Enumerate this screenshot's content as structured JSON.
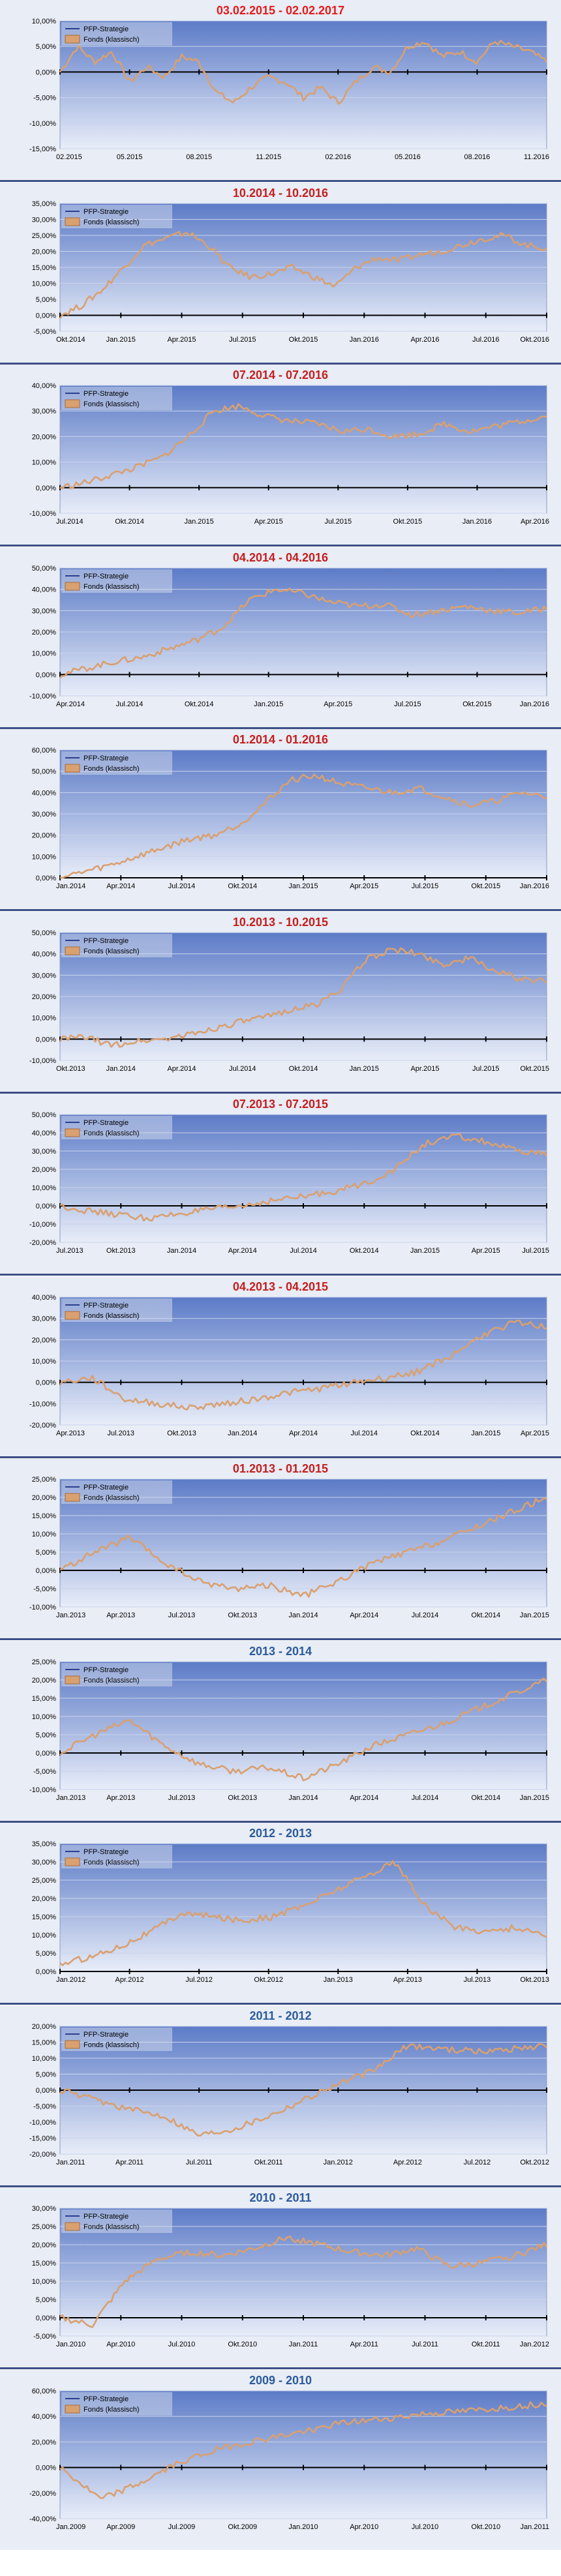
{
  "colors": {
    "title_first": "#e21b1b",
    "title_red": "#c41e1e",
    "title_blue": "#2a5b9c",
    "plot_top": "#5c7bc7",
    "plot_bottom": "#e8edf8",
    "panel_bg": "#e9edf5",
    "separator": "#3d4f86",
    "strategy_line": "#2c3f8f",
    "fund_line": "#d9a070"
  },
  "legend": {
    "strategy": "PFP-Strategie",
    "fund": "Fonds (klassisch)"
  },
  "chart_data": [
    {
      "type": "line",
      "title": "03.02.2015 - 02.02.2017",
      "title_color": "red_bright",
      "ylim": [
        -15,
        10
      ],
      "yticks": [
        "-15,00%",
        "-10,00%",
        "-5,00%",
        "0,00%",
        "5,00%",
        "10,00%"
      ],
      "xticks": [
        "02.2015",
        "05.2015",
        "08.2015",
        "11.2015",
        "02.2016",
        "05.2016",
        "08.2016",
        "11.2016"
      ],
      "points": [
        0,
        5,
        2,
        4,
        -2,
        1,
        -1,
        3,
        2,
        -4,
        -6,
        -3,
        -1,
        -2,
        -5,
        -3,
        -6,
        -2,
        1,
        0,
        5,
        6,
        3,
        4,
        2,
        6,
        5,
        4,
        2
      ],
      "series": [
        {
          "name": "PFP-Strategie"
        },
        {
          "name": "Fonds (klassisch)"
        }
      ]
    },
    {
      "type": "line",
      "title": "10.2014 - 10.2016",
      "title_color": "red",
      "ylim": [
        -5,
        35
      ],
      "yticks": [
        "-5,00%",
        "0,00%",
        "5,00%",
        "10,00%",
        "15,00%",
        "20,00%",
        "25,00%",
        "30,00%",
        "35,00%"
      ],
      "xticks": [
        "Okt.2014",
        "Jan.2015",
        "Apr.2015",
        "Jul.2015",
        "Okt.2015",
        "Jan.2016",
        "Apr.2016",
        "Jul.2016",
        "Okt.2016"
      ],
      "points": [
        0,
        3,
        8,
        15,
        22,
        24,
        26,
        22,
        15,
        12,
        13,
        15,
        12,
        9,
        15,
        18,
        17,
        19,
        20,
        22,
        24,
        25,
        22,
        21
      ],
      "series": [
        {
          "name": "PFP-Strategie"
        },
        {
          "name": "Fonds (klassisch)"
        }
      ]
    },
    {
      "type": "line",
      "title": "07.2014 - 07.2016",
      "title_color": "red",
      "ylim": [
        -10,
        40
      ],
      "yticks": [
        "-10,00%",
        "0,00%",
        "10,00%",
        "20,00%",
        "30,00%",
        "40,00%"
      ],
      "xticks": [
        "Jul.2014",
        "Okt.2014",
        "Jan.2015",
        "Apr.2015",
        "Jul.2015",
        "Okt.2015",
        "Jan.2016",
        "Apr.2016"
      ],
      "points": [
        0,
        2,
        5,
        8,
        12,
        20,
        30,
        32,
        28,
        26,
        25,
        22,
        23,
        20,
        21,
        25,
        22,
        24,
        26,
        28
      ],
      "series": [
        {
          "name": "PFP-Strategie"
        },
        {
          "name": "Fonds (klassisch)"
        }
      ]
    },
    {
      "type": "line",
      "title": "04.2014 - 04.2016",
      "title_color": "red",
      "ylim": [
        -10,
        50
      ],
      "yticks": [
        "-10,00%",
        "0,00%",
        "10,00%",
        "20,00%",
        "30,00%",
        "40,00%",
        "50,00%"
      ],
      "xticks": [
        "Apr.2014",
        "Jul.2014",
        "Okt.2014",
        "Jan.2015",
        "Apr.2015",
        "Jul.2015",
        "Okt.2015",
        "Jan.2016"
      ],
      "points": [
        0,
        3,
        6,
        8,
        12,
        16,
        22,
        35,
        40,
        38,
        34,
        32,
        33,
        28,
        30,
        32,
        30,
        29,
        31
      ],
      "series": [
        {
          "name": "PFP-Strategie"
        },
        {
          "name": "Fonds (klassisch)"
        }
      ]
    },
    {
      "type": "line",
      "title": "01.2014 - 01.2016",
      "title_color": "red",
      "ylim": [
        0,
        60
      ],
      "yticks": [
        "0,00%",
        "10,00%",
        "20,00%",
        "30,00%",
        "40,00%",
        "50,00%",
        "60,00%"
      ],
      "xticks": [
        "Jan.2014",
        "Apr.2014",
        "Jul.2014",
        "Okt.2014",
        "Jan.2015",
        "Apr.2015",
        "Jul.2015",
        "Okt.2015",
        "Jan.2016"
      ],
      "points": [
        0,
        3,
        6,
        10,
        14,
        18,
        20,
        25,
        35,
        46,
        48,
        44,
        42,
        40,
        42,
        38,
        34,
        36,
        40,
        38
      ],
      "series": [
        {
          "name": "PFP-Strategie"
        },
        {
          "name": "Fonds (klassisch)"
        }
      ]
    },
    {
      "type": "line",
      "title": "10.2013 - 10.2015",
      "title_color": "red",
      "ylim": [
        -10,
        50
      ],
      "yticks": [
        "-10,00%",
        "0,00%",
        "10,00%",
        "20,00%",
        "30,00%",
        "40,00%",
        "50,00%"
      ],
      "xticks": [
        "Okt.2013",
        "Jan.2014",
        "Apr.2014",
        "Jul.2014",
        "Okt.2014",
        "Jan.2015",
        "Apr.2015",
        "Jul.2015",
        "Okt.2015"
      ],
      "points": [
        0,
        1,
        -3,
        -1,
        0,
        2,
        5,
        8,
        10,
        14,
        16,
        24,
        38,
        42,
        40,
        35,
        38,
        32,
        28,
        27
      ],
      "series": [
        {
          "name": "PFP-Strategie"
        },
        {
          "name": "Fonds (klassisch)"
        }
      ]
    },
    {
      "type": "line",
      "title": "07.2013 - 07.2015",
      "title_color": "red",
      "ylim": [
        -20,
        50
      ],
      "yticks": [
        "-20,00%",
        "-10,00%",
        "0,00%",
        "10,00%",
        "20,00%",
        "30,00%",
        "40,00%",
        "50,00%"
      ],
      "xticks": [
        "Jul.2013",
        "Okt.2013",
        "Jan.2014",
        "Apr.2014",
        "Jul.2014",
        "Okt.2014",
        "Jan.2015",
        "Apr.2015",
        "Jul.2015"
      ],
      "points": [
        0,
        -3,
        -5,
        -7,
        -4,
        -2,
        0,
        3,
        5,
        8,
        12,
        20,
        34,
        38,
        35,
        30,
        28
      ],
      "series": [
        {
          "name": "PFP-Strategie"
        },
        {
          "name": "Fonds (klassisch)"
        }
      ]
    },
    {
      "type": "line",
      "title": "04.2013 - 04.2015",
      "title_color": "red",
      "ylim": [
        -20,
        40
      ],
      "yticks": [
        "-20,00%",
        "-10,00%",
        "0,00%",
        "10,00%",
        "20,00%",
        "30,00%",
        "40,00%"
      ],
      "xticks": [
        "Apr.2013",
        "Jul.2013",
        "Okt.2013",
        "Jan.2014",
        "Apr.2014",
        "Jul.2014",
        "Okt.2014",
        "Jan.2015",
        "Apr.2015"
      ],
      "points": [
        0,
        2,
        -8,
        -10,
        -12,
        -10,
        -8,
        -5,
        -3,
        0,
        2,
        5,
        12,
        22,
        28,
        26
      ],
      "series": [
        {
          "name": "PFP-Strategie"
        },
        {
          "name": "Fonds (klassisch)"
        }
      ]
    },
    {
      "type": "line",
      "title": "01.2013 - 01.2015",
      "title_color": "red",
      "ylim": [
        -10,
        25
      ],
      "yticks": [
        "-10,00%",
        "-5,00%",
        "0,00%",
        "5,00%",
        "10,00%",
        "15,00%",
        "20,00%",
        "25,00%"
      ],
      "xticks": [
        "Jan.2013",
        "Apr.2013",
        "Jul.2013",
        "Okt.2013",
        "Jan.2014",
        "Apr.2014",
        "Jul.2014",
        "Okt.2014",
        "Jan.2015"
      ],
      "points": [
        0,
        5,
        9,
        2,
        -3,
        -5,
        -4,
        -7,
        -3,
        2,
        5,
        8,
        12,
        16,
        20
      ],
      "series": [
        {
          "name": "PFP-Strategie"
        },
        {
          "name": "Fonds (klassisch)"
        }
      ]
    },
    {
      "type": "line",
      "title": "2013 - 2014",
      "title_color": "blue",
      "ylim": [
        -10,
        25
      ],
      "yticks": [
        "-10,00%",
        "-5,00%",
        "0,00%",
        "5,00%",
        "10,00%",
        "15,00%",
        "20,00%",
        "25,00%"
      ],
      "xticks": [
        "Jan.2013",
        "Apr.2013",
        "Jul.2013",
        "Okt.2013",
        "Jan.2014",
        "Apr.2014",
        "Jul.2014",
        "Okt.2014",
        "Jan.2015"
      ],
      "points": [
        0,
        5,
        9,
        2,
        -3,
        -5,
        -4,
        -7,
        -3,
        2,
        5,
        8,
        12,
        16,
        20
      ],
      "series": [
        {
          "name": "PFP-Strategie"
        },
        {
          "name": "Fonds (klassisch)"
        }
      ]
    },
    {
      "type": "line",
      "title": "2012 - 2013",
      "title_color": "blue",
      "ylim": [
        0,
        35
      ],
      "yticks": [
        "0,00%",
        "5,00%",
        "10,00%",
        "15,00%",
        "20,00%",
        "25,00%",
        "30,00%",
        "35,00%"
      ],
      "xticks": [
        "Jan.2012",
        "Apr.2012",
        "Jul.2012",
        "Okt.2012",
        "Jan.2013",
        "Apr.2013",
        "Jul.2013",
        "Okt.2013"
      ],
      "points": [
        2,
        4,
        7,
        11,
        16,
        15,
        14,
        15,
        18,
        22,
        26,
        30,
        18,
        12,
        11,
        12,
        10
      ],
      "series": [
        {
          "name": "PFP-Strategie"
        },
        {
          "name": "Fonds (klassisch)"
        }
      ]
    },
    {
      "type": "line",
      "title": "2011 - 2012",
      "title_color": "blue",
      "ylim": [
        -20,
        20
      ],
      "yticks": [
        "-20,00%",
        "-15,00%",
        "-10,00%",
        "-5,00%",
        "0,00%",
        "5,00%",
        "10,00%",
        "15,00%",
        "20,00%"
      ],
      "xticks": [
        "Jan.2011",
        "Apr.2011",
        "Jul.2011",
        "Okt.2011",
        "Jan.2012",
        "Apr.2012",
        "Jul.2012",
        "Okt.2012"
      ],
      "points": [
        0,
        -3,
        -6,
        -8,
        -14,
        -12,
        -8,
        -3,
        2,
        6,
        14,
        13,
        12,
        13,
        14
      ],
      "series": [
        {
          "name": "PFP-Strategie"
        },
        {
          "name": "Fonds (klassisch)"
        }
      ]
    },
    {
      "type": "line",
      "title": "2010 - 2011",
      "title_color": "blue",
      "ylim": [
        -5,
        30
      ],
      "yticks": [
        "-5,00%",
        "0,00%",
        "5,00%",
        "10,00%",
        "15,00%",
        "20,00%",
        "25,00%",
        "30,00%"
      ],
      "xticks": [
        "Jan.2010",
        "Apr.2010",
        "Jul.2010",
        "Okt.2010",
        "Jan.2011",
        "Apr.2011",
        "Jul.2011",
        "Okt.2011",
        "Jan.2012"
      ],
      "points": [
        0,
        -2,
        10,
        16,
        18,
        17,
        19,
        22,
        20,
        18,
        17,
        19,
        14,
        15,
        17,
        20
      ],
      "series": [
        {
          "name": "PFP-Strategie"
        },
        {
          "name": "Fonds (klassisch)"
        }
      ]
    },
    {
      "type": "line",
      "title": "2009 - 2010",
      "title_color": "blue",
      "ylim": [
        -40,
        60
      ],
      "yticks": [
        "-40,00%",
        "-20,00%",
        "0,00%",
        "20,00%",
        "40,00%",
        "60,00%"
      ],
      "xticks": [
        "Jan.2009",
        "Apr.2009",
        "Jul.2009",
        "Okt.2009",
        "Jan.2010",
        "Apr.2010",
        "Jul.2010",
        "Okt.2010",
        "Jan.2011"
      ],
      "points": [
        0,
        -25,
        -12,
        5,
        15,
        22,
        28,
        35,
        38,
        42,
        44,
        47,
        50
      ],
      "series": [
        {
          "name": "PFP-Strategie"
        },
        {
          "name": "Fonds (klassisch)"
        }
      ]
    }
  ]
}
